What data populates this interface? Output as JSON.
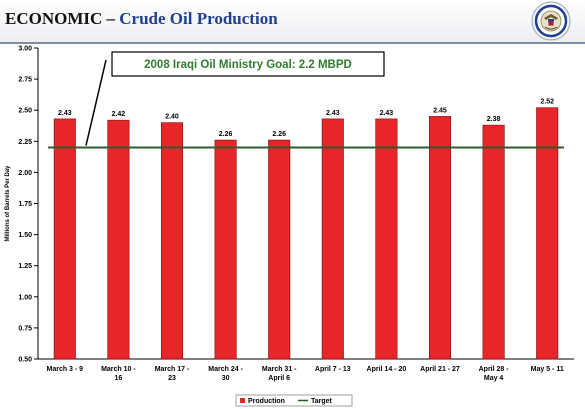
{
  "header": {
    "section": "ECONOMIC",
    "separator": " – ",
    "subtitle": "Crude Oil Production"
  },
  "seal_icon": "us-state-department-seal-icon",
  "chart_data": {
    "type": "bar",
    "ylabel": "Millions of Barrels Per Day",
    "ylim": [
      0.5,
      3.0
    ],
    "ytick_step": 0.25,
    "yticks": [
      "0.50",
      "0.75",
      "1.00",
      "1.25",
      "1.50",
      "1.75",
      "2.00",
      "2.25",
      "2.50",
      "2.75",
      "3.00"
    ],
    "categories": [
      [
        "March 3 - 9"
      ],
      [
        "March 10 -",
        "16"
      ],
      [
        "March 17 -",
        "23"
      ],
      [
        "March 24 -",
        "30"
      ],
      [
        "March 31 -",
        "April 6"
      ],
      [
        "April 7 - 13"
      ],
      [
        "April 14 - 20"
      ],
      [
        "April 21 - 27"
      ],
      [
        "April 28 -",
        "May 4"
      ],
      [
        "May 5 - 11"
      ]
    ],
    "series": [
      {
        "name": "Production",
        "values": [
          2.43,
          2.42,
          2.4,
          2.26,
          2.26,
          2.43,
          2.43,
          2.45,
          2.38,
          2.52
        ],
        "color": "#e8262a"
      }
    ],
    "data_labels": [
      "2.43",
      "2.42",
      "2.40",
      "2.26",
      "2.26",
      "2.43",
      "2.43",
      "2.45",
      "2.38",
      "2.52"
    ],
    "target": {
      "name": "Target",
      "value": 2.2,
      "color": "#2e5a2e"
    },
    "annotation": "2008 Iraqi Oil Ministry Goal: 2.2 MBPD",
    "annotation_color": "#2e7d2e",
    "grid": false,
    "legend_placement": "bottom"
  }
}
